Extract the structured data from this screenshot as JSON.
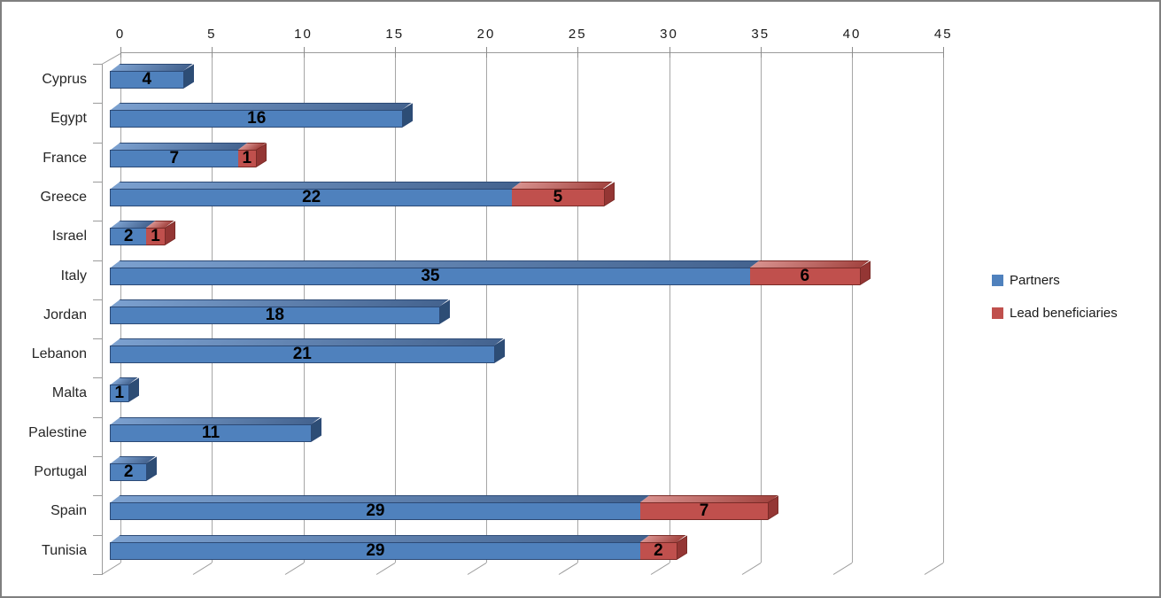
{
  "chart_data": {
    "type": "bar",
    "orientation": "horizontal",
    "stacked": true,
    "style": "3d-bevel",
    "title": "",
    "xlabel": "",
    "ylabel": "",
    "categories": [
      "Cyprus",
      "Egypt",
      "France",
      "Greece",
      "Israel",
      "Italy",
      "Jordan",
      "Lebanon",
      "Malta",
      "Palestine",
      "Portugal",
      "Spain",
      "Tunisia"
    ],
    "series": [
      {
        "name": "Partners",
        "color": "#4F81BD",
        "values": [
          4,
          16,
          7,
          22,
          2,
          35,
          18,
          21,
          1,
          11,
          2,
          29,
          29
        ]
      },
      {
        "name": "Lead beneficiaries",
        "color": "#C0504D",
        "values": [
          0,
          0,
          1,
          5,
          1,
          6,
          0,
          0,
          0,
          0,
          0,
          7,
          2
        ]
      }
    ],
    "x_axis": {
      "position": "top",
      "min": 0,
      "max": 45,
      "tick_step": 5,
      "ticks": [
        0,
        5,
        10,
        15,
        20,
        25,
        30,
        35,
        40,
        45
      ]
    },
    "grid": true,
    "data_labels": true,
    "legend_position": "right"
  },
  "palette": {
    "partners": {
      "front": "#4f81bd",
      "top1": "#7ba0cf",
      "top2": "#44638f",
      "cap": "#2d4d75",
      "line": "#2c4a76"
    },
    "lead": {
      "front": "#c0504d",
      "top1": "#d8918e",
      "top2": "#a34440",
      "cap": "#943634",
      "line": "#7a2b27"
    }
  }
}
